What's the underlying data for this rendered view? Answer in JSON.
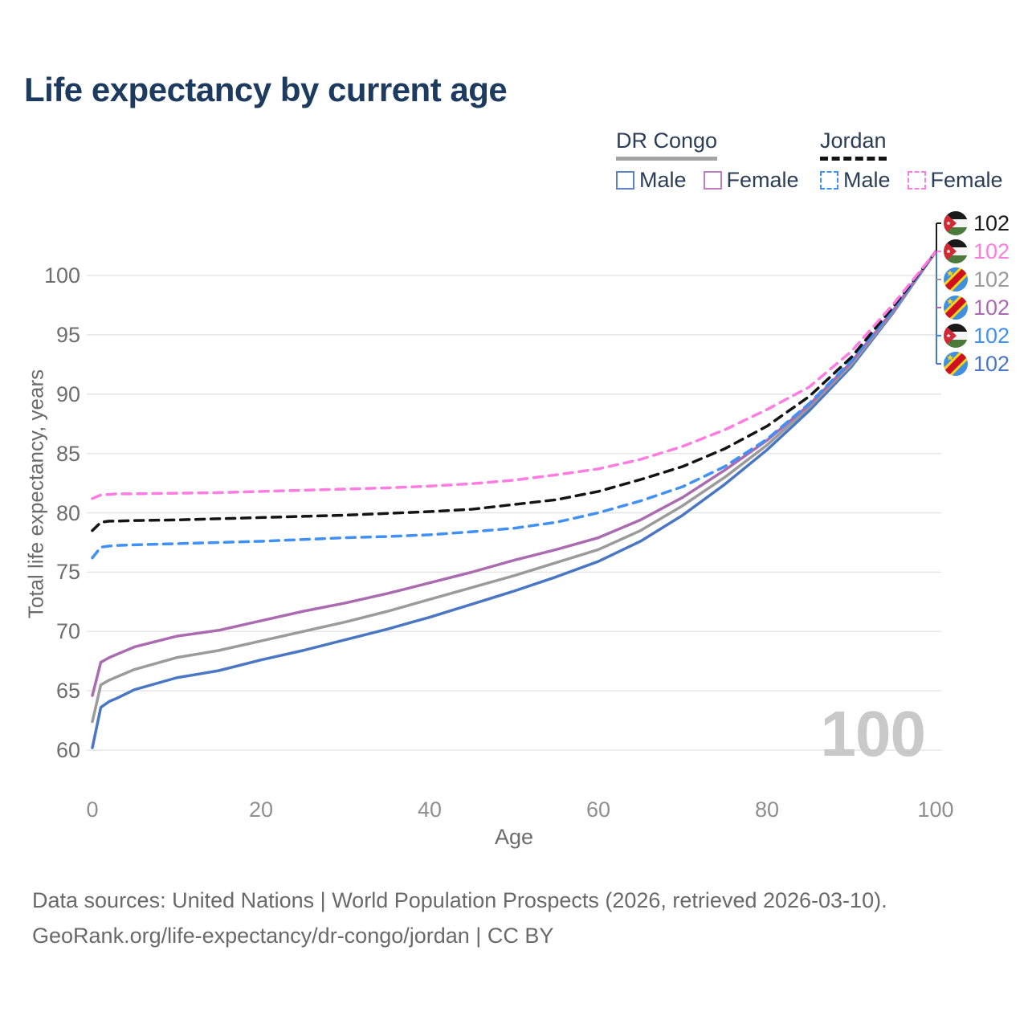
{
  "header": {
    "title": "Life expectancy by current age"
  },
  "legend": {
    "groups": [
      {
        "label": "DR Congo",
        "style": "solid",
        "underline_color": "#a3a3a3",
        "items": [
          {
            "label": "Male",
            "color": "#5b82c4"
          },
          {
            "label": "Female",
            "color": "#bd7fc0"
          }
        ]
      },
      {
        "label": "Jordan",
        "style": "dashed",
        "underline_color": "#141414",
        "items": [
          {
            "label": "Male",
            "color": "#4190f5"
          },
          {
            "label": "Female",
            "color": "#ff7ce0"
          }
        ]
      }
    ]
  },
  "axes": {
    "y_title": "Total life expectancy, years",
    "x_title": "Age"
  },
  "end_labels": [
    {
      "country": "Jordan",
      "flag": "jordan",
      "value": "102",
      "color": "#1a1a1a"
    },
    {
      "country": "Jordan",
      "flag": "jordan",
      "value": "102",
      "color": "#ff7ce0"
    },
    {
      "country": "DR Congo",
      "flag": "dr-congo",
      "value": "102",
      "color": "#9b9b9b"
    },
    {
      "country": "DR Congo",
      "flag": "dr-congo",
      "value": "102",
      "color": "#ab6bb0"
    },
    {
      "country": "Jordan",
      "flag": "jordan",
      "value": "102",
      "color": "#4190f5"
    },
    {
      "country": "DR Congo",
      "flag": "dr-congo",
      "value": "102",
      "color": "#4a77c4"
    }
  ],
  "watermark": "100",
  "footer": {
    "line1": "Data sources: United Nations | World Population Prospects (2026, retrieved 2026-03-10).",
    "line2": "GeoRank.org/life-expectancy/dr-congo/jordan | CC BY"
  },
  "chart_data": {
    "type": "line",
    "title": "Life expectancy by current age",
    "xlabel": "Age",
    "ylabel": "Total life expectancy, years",
    "xlim": [
      0,
      100
    ],
    "ylim": [
      60,
      103
    ],
    "xticks": [
      0,
      20,
      40,
      60,
      80,
      100
    ],
    "yticks": [
      60,
      65,
      70,
      75,
      80,
      85,
      90,
      95,
      100
    ],
    "grid": "horizontal",
    "legend_position": "top-right",
    "x": [
      0,
      1,
      2,
      3,
      5,
      10,
      15,
      20,
      25,
      30,
      35,
      40,
      45,
      50,
      55,
      60,
      65,
      70,
      75,
      80,
      85,
      90,
      95,
      100
    ],
    "series": [
      {
        "name": "DR Congo Male",
        "country": "DR Congo",
        "sex": "Male",
        "line": "solid",
        "color": "#4a77c4",
        "values": [
          60.2,
          63.6,
          64.1,
          64.4,
          65.1,
          66.1,
          66.7,
          67.6,
          68.4,
          69.3,
          70.2,
          71.2,
          72.3,
          73.4,
          74.6,
          75.9,
          77.6,
          79.8,
          82.4,
          85.3,
          88.6,
          92.3,
          96.9,
          102
        ]
      },
      {
        "name": "DR Congo Both sexes",
        "country": "DR Congo",
        "sex": "Both",
        "line": "solid",
        "color": "#9b9b9b",
        "values": [
          62.4,
          65.5,
          65.9,
          66.2,
          66.8,
          67.8,
          68.4,
          69.2,
          70.0,
          70.8,
          71.7,
          72.7,
          73.7,
          74.7,
          75.8,
          76.9,
          78.5,
          80.6,
          83.0,
          85.7,
          88.9,
          92.5,
          97.0,
          102
        ]
      },
      {
        "name": "DR Congo Female",
        "country": "DR Congo",
        "sex": "Female",
        "line": "solid",
        "color": "#ab6bb0",
        "values": [
          64.6,
          67.4,
          67.8,
          68.1,
          68.7,
          69.6,
          70.1,
          70.9,
          71.7,
          72.4,
          73.2,
          74.1,
          75.0,
          76.0,
          76.9,
          77.9,
          79.4,
          81.3,
          83.6,
          86.1,
          89.1,
          92.7,
          97.1,
          102
        ]
      },
      {
        "name": "Jordan Male",
        "country": "Jordan",
        "sex": "Male",
        "line": "dashed",
        "color": "#4190f5",
        "values": [
          76.2,
          77.1,
          77.2,
          77.25,
          77.3,
          77.4,
          77.5,
          77.6,
          77.75,
          77.9,
          78.0,
          78.15,
          78.4,
          78.7,
          79.2,
          80.0,
          81.0,
          82.2,
          83.9,
          86.2,
          89.2,
          92.8,
          97.2,
          102
        ]
      },
      {
        "name": "Jordan Both sexes",
        "country": "Jordan",
        "sex": "Both",
        "line": "dashed",
        "color": "#141414",
        "values": [
          78.5,
          79.2,
          79.3,
          79.3,
          79.35,
          79.4,
          79.5,
          79.6,
          79.7,
          79.8,
          79.95,
          80.1,
          80.3,
          80.7,
          81.1,
          81.8,
          82.8,
          83.9,
          85.4,
          87.3,
          89.8,
          93.1,
          97.4,
          102
        ]
      },
      {
        "name": "Jordan Female",
        "country": "Jordan",
        "sex": "Female",
        "line": "dashed",
        "color": "#ff7ce0",
        "values": [
          81.2,
          81.5,
          81.55,
          81.6,
          81.6,
          81.65,
          81.7,
          81.8,
          81.9,
          82.0,
          82.1,
          82.25,
          82.45,
          82.75,
          83.2,
          83.7,
          84.5,
          85.6,
          87.0,
          88.7,
          90.6,
          93.6,
          97.6,
          102
        ]
      }
    ]
  }
}
